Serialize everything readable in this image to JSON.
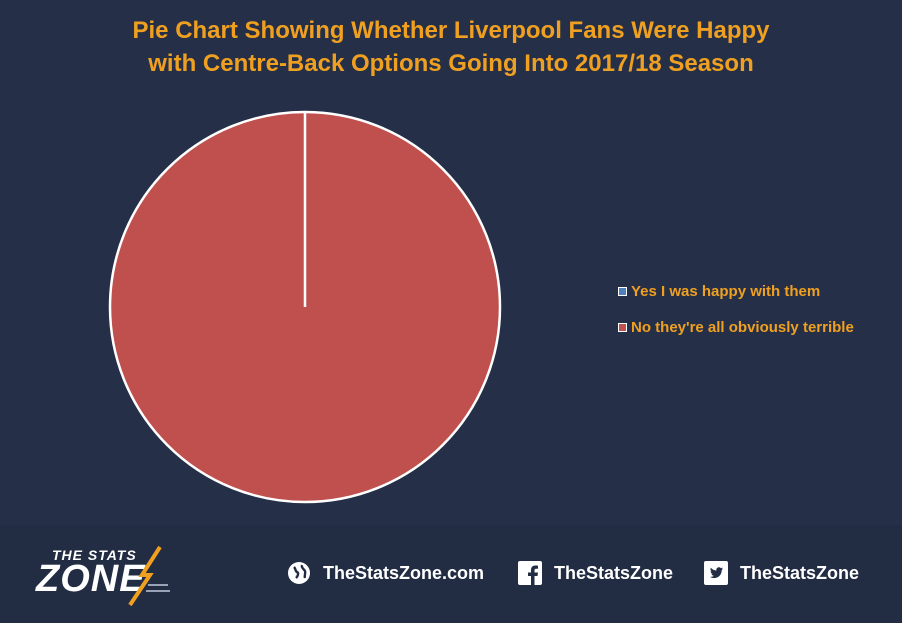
{
  "chart_data": {
    "type": "pie",
    "title": "Pie Chart Showing Whether Liverpool Fans Were Happy with Centre-Back Options Going Into 2017/18 Season",
    "title_lines": [
      "Pie Chart Showing Whether Liverpool Fans Were Happy",
      "with Centre-Back Options Going Into 2017/18 Season"
    ],
    "categories": [
      "Yes I was happy with them",
      "No they're all obviously terrible"
    ],
    "values": [
      0,
      100
    ],
    "colors": [
      "#4f81bd",
      "#c0504d"
    ],
    "legend_position": "right"
  },
  "colors": {
    "background": "#253048",
    "title": "#f0a020",
    "legend_text": "#f0a020",
    "footer": "#222c43"
  },
  "footer": {
    "logo_line1": "THE STATS",
    "logo_line2": "ZONE",
    "website": "TheStatsZone.com",
    "facebook": "TheStatsZone",
    "twitter": "TheStatsZone",
    "icons": [
      "globe-icon",
      "facebook-icon",
      "twitter-icon"
    ]
  }
}
